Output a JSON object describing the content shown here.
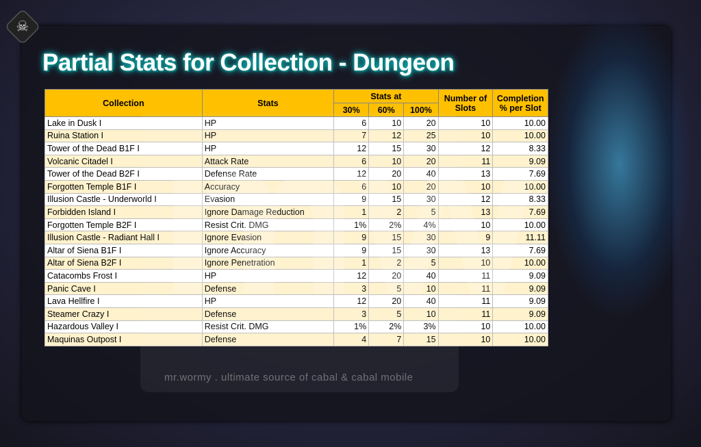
{
  "title": "Partial Stats for Collection - Dungeon",
  "watermark": {
    "logo": "mw",
    "text": "mr.wormy . ultimate source of cabal & cabal mobile"
  },
  "colors": {
    "header": "#ffc000",
    "row_alt": "#fff2cc",
    "row": "#ffffff"
  },
  "table": {
    "headers": {
      "collection": "Collection",
      "stats": "Stats",
      "stats_at": "Stats at",
      "p30": "30%",
      "p60": "60%",
      "p100": "100%",
      "slots": "Number of Slots",
      "completion": "Completion % per Slot"
    },
    "rows": [
      [
        "Lake in Dusk I",
        "HP",
        "6",
        "10",
        "20",
        "10",
        "10.00"
      ],
      [
        "Ruina Station I",
        "HP",
        "7",
        "12",
        "25",
        "10",
        "10.00"
      ],
      [
        "Tower of the Dead B1F I",
        "HP",
        "12",
        "15",
        "30",
        "12",
        "8.33"
      ],
      [
        "Volcanic Citadel I",
        "Attack Rate",
        "6",
        "10",
        "20",
        "11",
        "9.09"
      ],
      [
        "Tower of the Dead B2F I",
        "Defense Rate",
        "12",
        "20",
        "40",
        "13",
        "7.69"
      ],
      [
        "Forgotten Temple B1F I",
        "Accuracy",
        "6",
        "10",
        "20",
        "10",
        "10.00"
      ],
      [
        "Illusion Castle - Underworld I",
        "Evasion",
        "9",
        "15",
        "30",
        "12",
        "8.33"
      ],
      [
        "Forbidden Island I",
        "Ignore Damage Reduction",
        "1",
        "2",
        "5",
        "13",
        "7.69"
      ],
      [
        "Forgotten Temple B2F I",
        "Resist Crit. DMG",
        "1%",
        "2%",
        "4%",
        "10",
        "10.00"
      ],
      [
        "Illusion Castle - Radiant Hall I",
        "Ignore Evasion",
        "9",
        "15",
        "30",
        "9",
        "11.11"
      ],
      [
        "Altar of Siena B1F I",
        "Ignore Accuracy",
        "9",
        "15",
        "30",
        "13",
        "7.69"
      ],
      [
        "Altar of Siena B2F I",
        "Ignore Penetration",
        "1",
        "2",
        "5",
        "10",
        "10.00"
      ],
      [
        "Catacombs Frost I",
        "HP",
        "12",
        "20",
        "40",
        "11",
        "9.09"
      ],
      [
        "Panic Cave I",
        "Defense",
        "3",
        "5",
        "10",
        "11",
        "9.09"
      ],
      [
        "Lava Hellfire I",
        "HP",
        "12",
        "20",
        "40",
        "11",
        "9.09"
      ],
      [
        "Steamer Crazy I",
        "Defense",
        "3",
        "5",
        "10",
        "11",
        "9.09"
      ],
      [
        "Hazardous Valley I",
        "Resist Crit. DMG",
        "1%",
        "2%",
        "3%",
        "10",
        "10.00"
      ],
      [
        "Maquinas Outpost I",
        "Defense",
        "4",
        "7",
        "15",
        "10",
        "10.00"
      ]
    ]
  }
}
